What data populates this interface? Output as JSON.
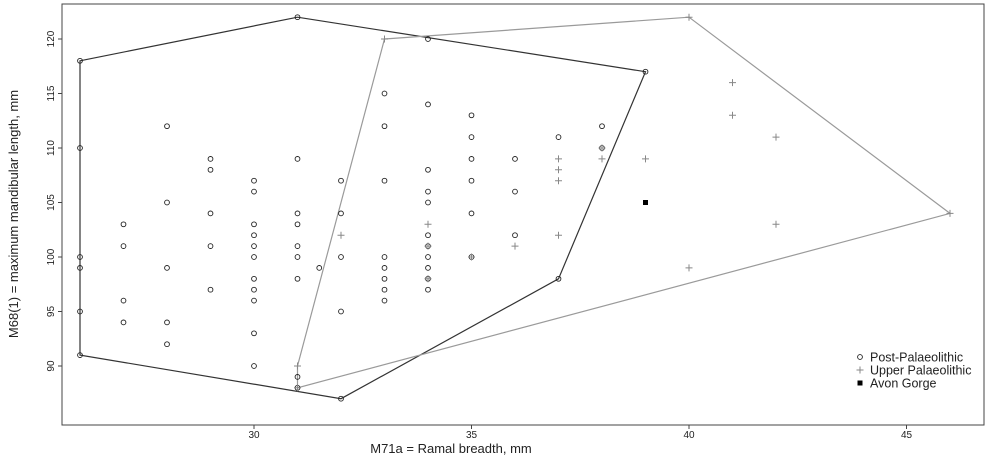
{
  "chart_data": {
    "type": "scatter",
    "xlabel": "M71a = Ramal breadth, mm",
    "ylabel": "M68(1) = maximum mandibular length, mm",
    "xlim": [
      25.5,
      46.5
    ],
    "ylim": [
      86,
      123
    ],
    "xticks": [
      30,
      35,
      40,
      45
    ],
    "yticks": [
      90,
      95,
      100,
      105,
      110,
      115,
      120
    ],
    "grid": false,
    "legend_position": "bottom-right",
    "series": [
      {
        "name": "Post-Palaeolithic",
        "marker": "open-circle",
        "color": "#222222",
        "points": [
          [
            26,
            118
          ],
          [
            26,
            110
          ],
          [
            26,
            100
          ],
          [
            26,
            99
          ],
          [
            26,
            95
          ],
          [
            26,
            91
          ],
          [
            27,
            103
          ],
          [
            27,
            101
          ],
          [
            27,
            96
          ],
          [
            27,
            94
          ],
          [
            28,
            112
          ],
          [
            28,
            105
          ],
          [
            28,
            99
          ],
          [
            28,
            94
          ],
          [
            28,
            92
          ],
          [
            29,
            109
          ],
          [
            29,
            108
          ],
          [
            29,
            104
          ],
          [
            29,
            101
          ],
          [
            29,
            97
          ],
          [
            30,
            107
          ],
          [
            30,
            106
          ],
          [
            30,
            103
          ],
          [
            30,
            102
          ],
          [
            30,
            101
          ],
          [
            30,
            100
          ],
          [
            30,
            98
          ],
          [
            30,
            97
          ],
          [
            30,
            96
          ],
          [
            30,
            93
          ],
          [
            30,
            90
          ],
          [
            31,
            122
          ],
          [
            31,
            109
          ],
          [
            31,
            104
          ],
          [
            31,
            103
          ],
          [
            31,
            101
          ],
          [
            31,
            100
          ],
          [
            31,
            98
          ],
          [
            31,
            89
          ],
          [
            31,
            88
          ],
          [
            31.5,
            99
          ],
          [
            32,
            107
          ],
          [
            32,
            104
          ],
          [
            32,
            100
          ],
          [
            32,
            95
          ],
          [
            32,
            87
          ],
          [
            33,
            115
          ],
          [
            33,
            112
          ],
          [
            33,
            107
          ],
          [
            33,
            100
          ],
          [
            33,
            99
          ],
          [
            33,
            98
          ],
          [
            33,
            97
          ],
          [
            33,
            96
          ],
          [
            34,
            120
          ],
          [
            34,
            114
          ],
          [
            34,
            108
          ],
          [
            34,
            106
          ],
          [
            34,
            105
          ],
          [
            34,
            102
          ],
          [
            34,
            101
          ],
          [
            34,
            100
          ],
          [
            34,
            99
          ],
          [
            34,
            98
          ],
          [
            34,
            97
          ],
          [
            35,
            113
          ],
          [
            35,
            111
          ],
          [
            35,
            109
          ],
          [
            35,
            107
          ],
          [
            35,
            104
          ],
          [
            35,
            100
          ],
          [
            36,
            109
          ],
          [
            36,
            106
          ],
          [
            36,
            102
          ],
          [
            37,
            111
          ],
          [
            37,
            98
          ],
          [
            38,
            112
          ],
          [
            38,
            110
          ],
          [
            39,
            117
          ]
        ]
      },
      {
        "name": "Upper Palaeolithic",
        "marker": "plus",
        "color": "#888888",
        "points": [
          [
            31,
            90
          ],
          [
            31,
            88
          ],
          [
            32,
            102
          ],
          [
            33,
            120
          ],
          [
            34,
            103
          ],
          [
            34,
            101
          ],
          [
            34,
            98
          ],
          [
            35,
            100
          ],
          [
            36,
            101
          ],
          [
            37,
            109
          ],
          [
            37,
            108
          ],
          [
            37,
            107
          ],
          [
            37,
            102
          ],
          [
            38,
            110
          ],
          [
            38,
            109
          ],
          [
            39,
            109
          ],
          [
            40,
            122
          ],
          [
            40,
            99
          ],
          [
            41,
            116
          ],
          [
            41,
            113
          ],
          [
            42,
            111
          ],
          [
            42,
            103
          ],
          [
            46,
            104
          ]
        ]
      },
      {
        "name": "Avon Gorge",
        "marker": "filled-square",
        "color": "#000000",
        "points": [
          [
            39,
            105
          ]
        ]
      }
    ],
    "hulls": [
      {
        "series": "Post-Palaeolithic",
        "color": "#333333",
        "vertices": [
          [
            26,
            118
          ],
          [
            31,
            122
          ],
          [
            39,
            117
          ],
          [
            37,
            98
          ],
          [
            32,
            87
          ],
          [
            26,
            91
          ]
        ]
      },
      {
        "series": "Upper Palaeolithic",
        "color": "#9a9a9a",
        "vertices": [
          [
            33,
            120
          ],
          [
            40,
            122
          ],
          [
            46,
            104
          ],
          [
            31,
            88
          ],
          [
            31,
            90
          ]
        ]
      }
    ]
  }
}
